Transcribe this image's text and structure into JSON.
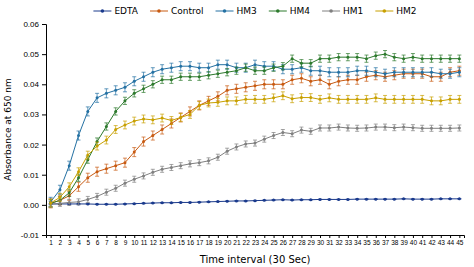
{
  "chart_data": {
    "type": "line",
    "xlabel": "Time interval (30 Sec)",
    "ylabel": "Absorbance at 650 nm",
    "x": [
      1,
      2,
      3,
      4,
      5,
      6,
      7,
      8,
      9,
      10,
      11,
      12,
      13,
      14,
      15,
      16,
      17,
      18,
      19,
      20,
      21,
      22,
      23,
      24,
      25,
      26,
      27,
      28,
      29,
      30,
      31,
      32,
      33,
      34,
      35,
      36,
      37,
      38,
      39,
      40,
      41,
      42,
      43,
      44,
      45
    ],
    "xlim": [
      0.5,
      45.5
    ],
    "xticks": [
      1,
      2,
      3,
      4,
      5,
      6,
      7,
      8,
      9,
      10,
      11,
      12,
      13,
      14,
      15,
      16,
      17,
      18,
      19,
      20,
      21,
      22,
      23,
      24,
      25,
      26,
      27,
      28,
      29,
      30,
      31,
      32,
      33,
      34,
      35,
      36,
      37,
      38,
      39,
      40,
      41,
      42,
      43,
      44,
      45
    ],
    "ylim": [
      -0.01,
      0.06
    ],
    "yticks": [
      -0.01,
      {
        "value": 0,
        "label": "0.00"
      },
      0.01,
      0.02,
      0.03,
      0.04,
      0.05,
      0.06
    ],
    "grid": false,
    "legend": "top",
    "series": [
      {
        "name": "EDTA",
        "color": "#1a3a8c",
        "marker": "circle",
        "values": [
          0.0003,
          0.0003,
          0.0003,
          0.0003,
          0.0003,
          0.0002,
          0.0002,
          0.0002,
          0.0003,
          0.0004,
          0.0005,
          0.0006,
          0.0007,
          0.0007,
          0.0008,
          0.0008,
          0.0009,
          0.001,
          0.0011,
          0.0012,
          0.0013,
          0.0013,
          0.0014,
          0.0015,
          0.0016,
          0.0017,
          0.0016,
          0.0017,
          0.0017,
          0.0018,
          0.0018,
          0.0018,
          0.0018,
          0.0019,
          0.0019,
          0.0019,
          0.0019,
          0.0019,
          0.002,
          0.0019,
          0.0019,
          0.0019,
          0.002,
          0.002,
          0.002
        ],
        "errors": [
          0.0001,
          0.0001,
          0.0001,
          0.0001,
          0.0001,
          0.0001,
          0.0001,
          0.0001,
          0.0001,
          0.0001,
          0.0001,
          0.0001,
          0.0001,
          0.0001,
          0.0001,
          0.0001,
          0.0001,
          0.0001,
          0.0001,
          0.0001,
          0.0001,
          0.0001,
          0.0001,
          0.0001,
          0.0001,
          0.0001,
          0.0001,
          0.0001,
          0.0001,
          0.0001,
          0.0001,
          0.0001,
          0.0001,
          0.0001,
          0.0001,
          0.0001,
          0.0001,
          0.0001,
          0.0001,
          0.0001,
          0.0001,
          0.0001,
          0.0001,
          0.0001,
          0.0001
        ]
      },
      {
        "name": "Control",
        "color": "#c85a11",
        "marker": "circle",
        "values": [
          0.0005,
          0.0015,
          0.003,
          0.006,
          0.009,
          0.011,
          0.012,
          0.013,
          0.014,
          0.0175,
          0.021,
          0.023,
          0.025,
          0.027,
          0.029,
          0.031,
          0.033,
          0.0345,
          0.036,
          0.038,
          0.0385,
          0.039,
          0.0395,
          0.04,
          0.04,
          0.04,
          0.0415,
          0.042,
          0.041,
          0.0415,
          0.04,
          0.041,
          0.0415,
          0.0415,
          0.0425,
          0.043,
          0.0425,
          0.043,
          0.0435,
          0.0435,
          0.0435,
          0.0425,
          0.0425,
          0.044,
          0.0445
        ],
        "errors": [
          0.0015,
          0.0015,
          0.0015,
          0.0015,
          0.0015,
          0.0015,
          0.0015,
          0.0015,
          0.0015,
          0.0015,
          0.0015,
          0.0015,
          0.0015,
          0.0015,
          0.0015,
          0.0015,
          0.0015,
          0.0015,
          0.0015,
          0.0015,
          0.0015,
          0.0015,
          0.0015,
          0.0015,
          0.0015,
          0.0015,
          0.0015,
          0.0015,
          0.0015,
          0.0015,
          0.0015,
          0.0015,
          0.0015,
          0.0015,
          0.0015,
          0.0015,
          0.0015,
          0.0015,
          0.0015,
          0.0015,
          0.0015,
          0.0015,
          0.0015,
          0.0015,
          0.0015
        ]
      },
      {
        "name": "HM3",
        "color": "#2471a3",
        "marker": "circle",
        "values": [
          0.001,
          0.005,
          0.013,
          0.023,
          0.031,
          0.0355,
          0.037,
          0.038,
          0.039,
          0.041,
          0.0425,
          0.044,
          0.045,
          0.0455,
          0.046,
          0.046,
          0.0455,
          0.0455,
          0.0465,
          0.0465,
          0.0455,
          0.0455,
          0.0465,
          0.046,
          0.046,
          0.045,
          0.045,
          0.0455,
          0.0445,
          0.0445,
          0.044,
          0.044,
          0.044,
          0.0445,
          0.0445,
          0.044,
          0.0435,
          0.044,
          0.044,
          0.044,
          0.044,
          0.044,
          0.0435,
          0.0435,
          0.044
        ],
        "errors": [
          0.0015,
          0.0015,
          0.0015,
          0.0015,
          0.0015,
          0.0015,
          0.0015,
          0.0015,
          0.0015,
          0.0015,
          0.0015,
          0.0015,
          0.0015,
          0.0015,
          0.0015,
          0.0015,
          0.0015,
          0.0015,
          0.0015,
          0.0015,
          0.0015,
          0.0015,
          0.0015,
          0.0015,
          0.0015,
          0.0015,
          0.0015,
          0.0015,
          0.0015,
          0.0015,
          0.0015,
          0.0015,
          0.0015,
          0.0015,
          0.0015,
          0.0015,
          0.0015,
          0.0015,
          0.0015,
          0.0015,
          0.0015,
          0.0015,
          0.0015,
          0.0015,
          0.0015
        ]
      },
      {
        "name": "HM4",
        "color": "#2d7a2d",
        "marker": "circle",
        "values": [
          0.0005,
          0.0015,
          0.004,
          0.009,
          0.015,
          0.021,
          0.026,
          0.031,
          0.0345,
          0.037,
          0.0385,
          0.04,
          0.0415,
          0.0415,
          0.0425,
          0.0425,
          0.0425,
          0.043,
          0.0435,
          0.044,
          0.0445,
          0.0455,
          0.0445,
          0.0445,
          0.0455,
          0.046,
          0.0485,
          0.047,
          0.047,
          0.0485,
          0.0485,
          0.049,
          0.049,
          0.049,
          0.0485,
          0.0495,
          0.05,
          0.049,
          0.0485,
          0.049,
          0.0485,
          0.0485,
          0.0485,
          0.0485,
          0.0485
        ],
        "errors": [
          0.0012,
          0.0012,
          0.0012,
          0.0012,
          0.0012,
          0.0012,
          0.0012,
          0.0012,
          0.0012,
          0.0012,
          0.0012,
          0.0012,
          0.0012,
          0.0012,
          0.0012,
          0.0012,
          0.0012,
          0.0012,
          0.0012,
          0.0012,
          0.0012,
          0.0012,
          0.0012,
          0.0012,
          0.0012,
          0.0012,
          0.0012,
          0.0012,
          0.0012,
          0.0012,
          0.0012,
          0.0012,
          0.0012,
          0.0012,
          0.0012,
          0.0012,
          0.0012,
          0.0012,
          0.0012,
          0.0012,
          0.0012,
          0.0012,
          0.0012,
          0.0012,
          0.0012
        ]
      },
      {
        "name": "HM1",
        "color": "#808080",
        "marker": "circle",
        "values": [
          0.0002,
          0.0005,
          0.0008,
          0.001,
          0.0018,
          0.0028,
          0.0042,
          0.0055,
          0.0072,
          0.0085,
          0.0096,
          0.0108,
          0.0118,
          0.0124,
          0.013,
          0.0136,
          0.014,
          0.0146,
          0.0158,
          0.0178,
          0.0192,
          0.0202,
          0.0205,
          0.0218,
          0.023,
          0.024,
          0.0236,
          0.0248,
          0.0244,
          0.0255,
          0.0255,
          0.0258,
          0.0255,
          0.0254,
          0.0255,
          0.0258,
          0.0258,
          0.0256,
          0.0258,
          0.0256,
          0.0254,
          0.0254,
          0.0254,
          0.0254,
          0.0255
        ],
        "errors": [
          0.001,
          0.001,
          0.001,
          0.001,
          0.001,
          0.001,
          0.001,
          0.001,
          0.001,
          0.001,
          0.001,
          0.001,
          0.001,
          0.001,
          0.001,
          0.001,
          0.001,
          0.001,
          0.001,
          0.001,
          0.001,
          0.001,
          0.001,
          0.001,
          0.001,
          0.001,
          0.001,
          0.001,
          0.001,
          0.001,
          0.001,
          0.001,
          0.001,
          0.001,
          0.001,
          0.001,
          0.001,
          0.001,
          0.001,
          0.001,
          0.001,
          0.001,
          0.001,
          0.001,
          0.001
        ]
      },
      {
        "name": "HM2",
        "color": "#c8a000",
        "marker": "circle",
        "values": [
          0.0006,
          0.0025,
          0.006,
          0.011,
          0.0165,
          0.0195,
          0.0215,
          0.025,
          0.0265,
          0.0278,
          0.0285,
          0.0282,
          0.0288,
          0.028,
          0.029,
          0.03,
          0.033,
          0.0338,
          0.034,
          0.0345,
          0.0345,
          0.035,
          0.035,
          0.035,
          0.0355,
          0.0362,
          0.0352,
          0.0356,
          0.0356,
          0.035,
          0.0355,
          0.035,
          0.035,
          0.035,
          0.035,
          0.0355,
          0.035,
          0.035,
          0.035,
          0.035,
          0.035,
          0.0345,
          0.0345,
          0.035,
          0.035
        ],
        "errors": [
          0.0013,
          0.0013,
          0.0013,
          0.0013,
          0.0013,
          0.0013,
          0.0013,
          0.0013,
          0.0013,
          0.0013,
          0.0013,
          0.0013,
          0.0013,
          0.0013,
          0.0013,
          0.0013,
          0.0013,
          0.0013,
          0.0013,
          0.0013,
          0.0013,
          0.0013,
          0.0013,
          0.0013,
          0.0013,
          0.0013,
          0.0013,
          0.0013,
          0.0013,
          0.0013,
          0.0013,
          0.0013,
          0.0013,
          0.0013,
          0.0013,
          0.0013,
          0.0013,
          0.0013,
          0.0013,
          0.0013,
          0.0013,
          0.0013,
          0.0013,
          0.0013,
          0.0013
        ]
      }
    ]
  }
}
